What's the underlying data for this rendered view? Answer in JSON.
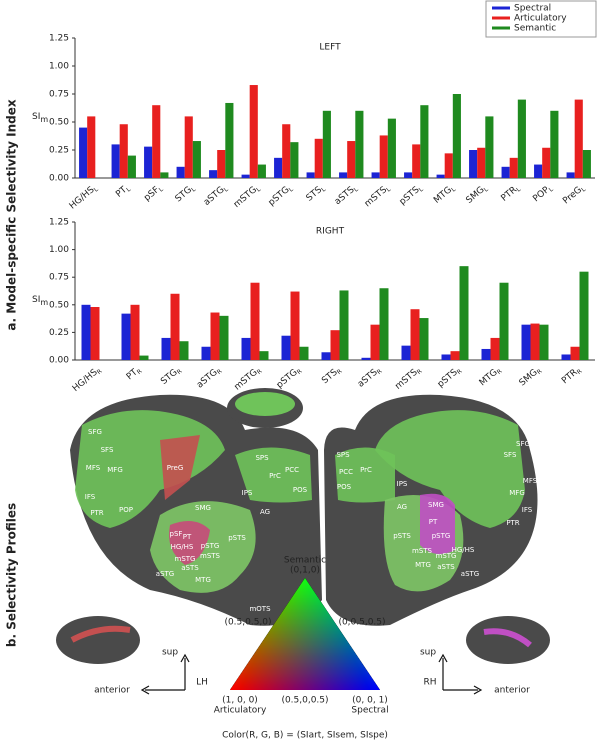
{
  "chart_data": [
    {
      "type": "bar",
      "title": "LEFT",
      "y_label": "SIm",
      "categories": [
        "HG/HSL",
        "PTL",
        "pSFL",
        "STGL",
        "aSTGL",
        "mSTGL",
        "pSTGL",
        "STSL",
        "aSTSL",
        "mSTSL",
        "pSTSL",
        "MTGL",
        "SMGL",
        "PTRL",
        "POPL",
        "PreGL"
      ],
      "series": [
        {
          "name": "Spectral",
          "color": "#1c24d4",
          "values": [
            0.45,
            0.3,
            0.28,
            0.1,
            0.07,
            0.03,
            0.18,
            0.05,
            0.05,
            0.05,
            0.05,
            0.03,
            0.25,
            0.1,
            0.12,
            0.05
          ]
        },
        {
          "name": "Articulatory",
          "color": "#e8201f",
          "values": [
            0.55,
            0.48,
            0.65,
            0.55,
            0.25,
            0.83,
            0.48,
            0.35,
            0.33,
            0.38,
            0.3,
            0.22,
            0.27,
            0.18,
            0.27,
            0.7
          ]
        },
        {
          "name": "Semantic",
          "color": "#1f8a1f",
          "values": [
            0,
            0.2,
            0.05,
            0.33,
            0.67,
            0.12,
            0.32,
            0.6,
            0.6,
            0.53,
            0.65,
            0.75,
            0.55,
            0.7,
            0.6,
            0.25
          ]
        }
      ],
      "ylim": [
        0,
        1.25
      ],
      "yticks": [
        {
          "value": 0,
          "label": "0.00"
        },
        0.25,
        {
          "value": 0.5,
          "label": "0.50"
        },
        0.75,
        {
          "value": 1,
          "label": "1.00"
        },
        1.25
      ]
    },
    {
      "type": "bar",
      "title": "RIGHT",
      "y_label": "SIm",
      "categories": [
        "HG/HSR",
        "PTR",
        "STGR",
        "aSTGR",
        "mSTGR",
        "pSTGR",
        "STSR",
        "aSTSR",
        "mSTSR",
        "pSTSR",
        "MTGR",
        "SMGR",
        "PTRR"
      ],
      "series": [
        {
          "color": "#1c24d4",
          "values": [
            0.5,
            0.42,
            0.2,
            0.12,
            0.2,
            0.22,
            0.07,
            0.02,
            0.13,
            0.05,
            0.1,
            0.32,
            0.05
          ]
        },
        {
          "color": "#e8201f",
          "values": [
            0.48,
            0.5,
            0.6,
            0.43,
            0.7,
            0.62,
            0.27,
            0.32,
            0.46,
            0.08,
            0.2,
            0.33,
            0.12
          ]
        },
        {
          "color": "#1f8a1f",
          "values": [
            0,
            0.04,
            0.17,
            0.4,
            0.08,
            0.12,
            0.63,
            0.65,
            0.38,
            0.85,
            0.7,
            0.32,
            0.8
          ]
        }
      ],
      "ylim": [
        0,
        1.25
      ],
      "yticks": [
        {
          "value": 0,
          "label": "0.00"
        },
        0.25,
        {
          "value": 0.5,
          "label": "0.50"
        },
        0.75,
        {
          "value": 1,
          "label": "1.00"
        },
        1.25
      ]
    }
  ],
  "sections": {
    "a": "a. Model-specific Selectivity Index",
    "b": "b. Selectivity Profiles"
  },
  "brain": {
    "left_labels": [
      "SFG",
      "SFS",
      "MFS",
      "MFG",
      "PreG",
      "IFS",
      "PTR",
      "POP",
      "SPS",
      "PrC",
      "PCC",
      "POS",
      "IPS",
      "AG",
      "SMG",
      "pSF",
      "PT",
      "HG/HS",
      "pSTG",
      "mSTG",
      "mSTS",
      "pSTS",
      "aSTS",
      "aSTG",
      "MTG",
      "mOTS"
    ],
    "right_labels": [
      "SPS",
      "PCC",
      "PrC",
      "POS",
      "IPS",
      "AG",
      "SMG",
      "PT",
      "pSTG",
      "HG/HS",
      "pSTS",
      "mSTS",
      "mSTG",
      "aSTS",
      "aSTG",
      "MTG",
      "SFG",
      "SFS",
      "MFS",
      "MFG",
      "IFS",
      "PTR"
    ]
  },
  "triangle": {
    "top_name": "Semantic",
    "top": "(0,1,0)",
    "left_mid": "(0.5,0.5,0)",
    "right_mid": "(0,0.5,0.5)",
    "left": "(1, 0, 0)",
    "left_name": "Articulatory",
    "bottom_mid": "(0.5,0,0.5)",
    "right": "(0, 0, 1)",
    "right_name": "Spectral",
    "formula": "Color(R, G, B) = (SIart, SIsem, SIspe)"
  },
  "orientation": {
    "sup": "sup",
    "anterior": "anterior",
    "lh": "LH",
    "rh": "RH"
  }
}
